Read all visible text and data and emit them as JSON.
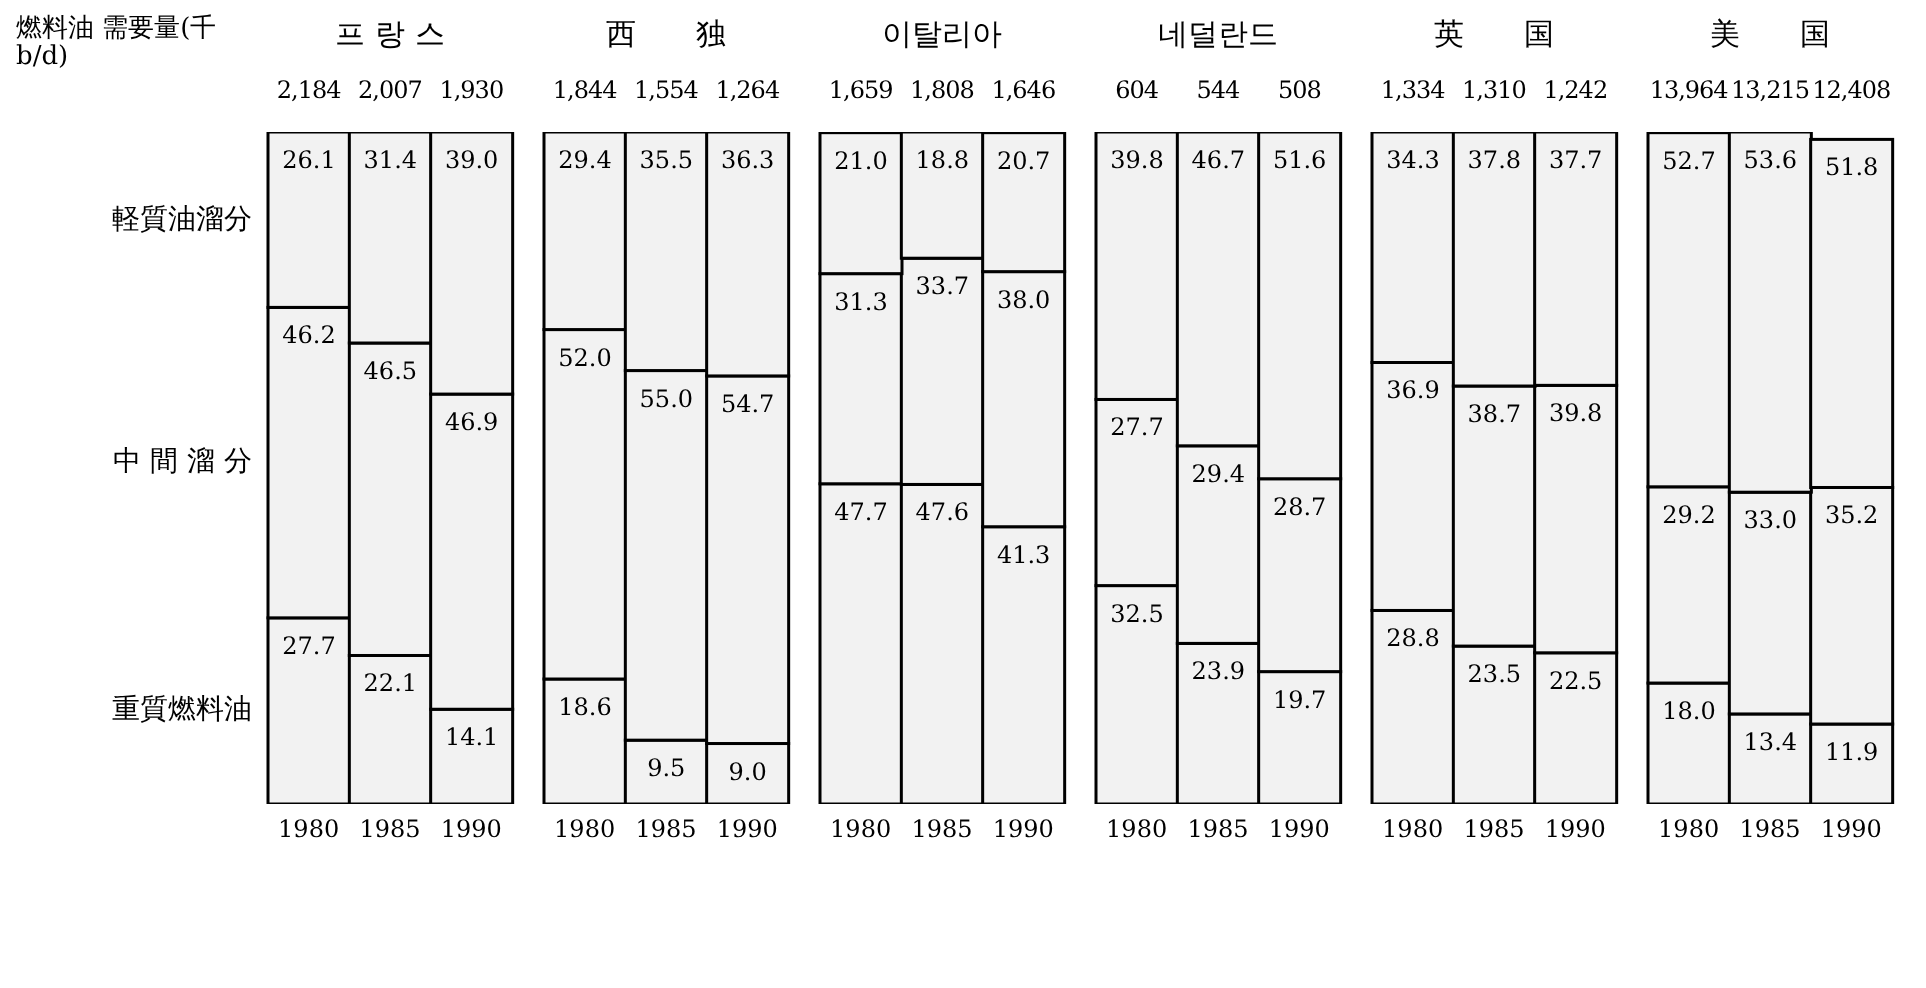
{
  "chart_data": [
    {
      "type": "bar",
      "stacked": true,
      "title": "프 랑 스",
      "categories": [
        "1980",
        "1985",
        "1990"
      ],
      "series": [
        {
          "name": "重質燃料油",
          "color": "#f2f2f2",
          "values": [
            27.7,
            22.1,
            14.1
          ],
          "value_labels": [
            "27.7",
            "22.1",
            "14.1"
          ]
        },
        {
          "name": "中 間 溜 分",
          "color": "#f2f2f2",
          "values": [
            46.2,
            46.5,
            46.9
          ],
          "value_labels": [
            "46.2",
            "46.5",
            "46.9"
          ]
        },
        {
          "name": "軽質油溜分",
          "color": "#f2f2f2",
          "values": [
            26.1,
            31.4,
            39.0
          ],
          "value_labels": [
            "26.1",
            "31.4",
            "39.0"
          ]
        }
      ],
      "annotations": [
        "燃料油 需要量(千b/d)",
        "2,184",
        "2,007",
        "1,930"
      ]
    },
    {
      "type": "bar",
      "stacked": true,
      "title": "西　　独",
      "categories": [
        "1980",
        "1985",
        "1990"
      ],
      "series": [
        {
          "color": "#f2f2f2",
          "values": [
            18.6,
            9.5,
            9.0
          ],
          "value_labels": [
            "18.6",
            "9.5",
            "9.0"
          ]
        },
        {
          "color": "#f2f2f2",
          "values": [
            52.0,
            55.0,
            54.7
          ],
          "value_labels": [
            "52.0",
            "55.0",
            "54.7"
          ]
        },
        {
          "color": "#f2f2f2",
          "values": [
            29.4,
            35.5,
            36.3
          ],
          "value_labels": [
            "29.4",
            "35.5",
            "36.3"
          ]
        }
      ],
      "annotations": [
        "1,844",
        "1,554",
        "1,264"
      ]
    },
    {
      "type": "bar",
      "stacked": true,
      "title": "이탈리아",
      "categories": [
        "1980",
        "1985",
        "1990"
      ],
      "series": [
        {
          "color": "#f2f2f2",
          "values": [
            47.7,
            47.6,
            41.3
          ],
          "value_labels": [
            "47.7",
            "47.6",
            "41.3"
          ]
        },
        {
          "color": "#f2f2f2",
          "values": [
            31.3,
            33.7,
            38.0
          ],
          "value_labels": [
            "31.3",
            "33.7",
            "38.0"
          ]
        },
        {
          "color": "#f2f2f2",
          "values": [
            21.0,
            18.8,
            20.7
          ],
          "value_labels": [
            "21.0",
            "18.8",
            "20.7"
          ]
        }
      ],
      "annotations": [
        "1,659",
        "1,808",
        "1,646"
      ]
    },
    {
      "type": "bar",
      "stacked": true,
      "title": "네덜란드",
      "categories": [
        "1980",
        "1985",
        "1990"
      ],
      "series": [
        {
          "color": "#f2f2f2",
          "values": [
            32.5,
            23.9,
            19.7
          ],
          "value_labels": [
            "32.5",
            "23.9",
            "19.7"
          ]
        },
        {
          "color": "#f2f2f2",
          "values": [
            27.7,
            29.4,
            28.7
          ],
          "value_labels": [
            "27.7",
            "29.4",
            "28.7"
          ]
        },
        {
          "color": "#f2f2f2",
          "values": [
            39.8,
            46.7,
            51.6
          ],
          "value_labels": [
            "39.8",
            "46.7",
            "51.6"
          ]
        }
      ],
      "annotations": [
        "604",
        "544",
        "508"
      ]
    },
    {
      "type": "bar",
      "stacked": true,
      "title": "英　　国",
      "categories": [
        "1980",
        "1985",
        "1990"
      ],
      "series": [
        {
          "color": "#f2f2f2",
          "values": [
            28.8,
            23.5,
            22.5
          ],
          "value_labels": [
            "28.8",
            "23.5",
            "22.5"
          ]
        },
        {
          "color": "#f2f2f2",
          "values": [
            36.9,
            38.7,
            39.8
          ],
          "value_labels": [
            "36.9",
            "38.7",
            "39.8"
          ]
        },
        {
          "color": "#f2f2f2",
          "values": [
            34.3,
            37.8,
            37.7
          ],
          "value_labels": [
            "34.3",
            "37.8",
            "37.7"
          ]
        }
      ],
      "annotations": [
        "1,334",
        "1,310",
        "1,242"
      ]
    },
    {
      "type": "bar",
      "stacked": true,
      "title": "美　　国",
      "categories": [
        "1980",
        "1985",
        "1990"
      ],
      "series": [
        {
          "color": "#f2f2f2",
          "values": [
            18.0,
            13.4,
            11.9
          ],
          "value_labels": [
            "18.0",
            "13.4",
            "11.9"
          ]
        },
        {
          "color": "#f2f2f2",
          "values": [
            29.2,
            33.0,
            35.2
          ],
          "value_labels": [
            "29.2",
            "33.0",
            "35.2"
          ]
        },
        {
          "color": "#f2f2f2",
          "values": [
            52.7,
            53.6,
            51.8
          ],
          "value_labels": [
            "52.7",
            "53.6",
            "51.8"
          ]
        }
      ],
      "annotations": [
        "13,964",
        "13,215",
        "12,408"
      ]
    }
  ]
}
